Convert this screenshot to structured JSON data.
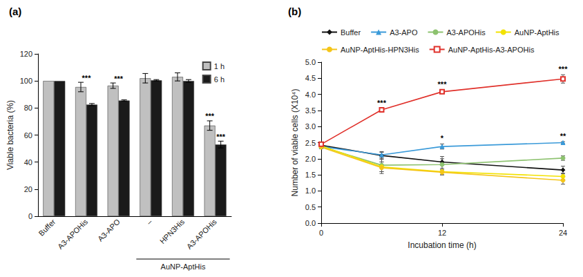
{
  "chart_data": [
    {
      "type": "bar",
      "title": "(a)",
      "y_label": "Viable bacteria (%)",
      "categories": [
        "Buffer",
        "A3-APOHis",
        "A3-APO",
        "–",
        "HPN3His",
        "A3-APOHis"
      ],
      "series": [
        {
          "name": "1 h",
          "color": "#c0c0c0",
          "values": [
            100,
            95.5,
            96.5,
            102,
            103,
            67
          ],
          "errors": [
            0,
            3.5,
            2,
            3.5,
            3,
            3.5
          ]
        },
        {
          "name": "6 h",
          "color": "#1a1a1a",
          "values": [
            100,
            82.5,
            85.5,
            100.5,
            100,
            53
          ],
          "errors": [
            0,
            0.8,
            0.5,
            0.5,
            1,
            2.5
          ]
        }
      ],
      "ylim": [
        0,
        120
      ],
      "yticks": [
        0,
        20,
        40,
        60,
        80,
        100,
        120
      ],
      "grid": false,
      "legend": "upper right",
      "annotations": [
        {
          "category_index": 1,
          "text": "***"
        },
        {
          "category_index": 2,
          "text": "***"
        },
        {
          "category_index": 5,
          "series": "1 h",
          "text": "***"
        },
        {
          "category_index": 5,
          "series": "6 h",
          "text": "***"
        }
      ],
      "group_label": {
        "text": "AuNP-AptHis",
        "from_index": 3,
        "to_index": 5
      }
    },
    {
      "type": "line",
      "title": "(b)",
      "x_label": "Incubation time (h)",
      "y_label": "Number of viable cells (X10⁴)",
      "x": [
        0,
        6,
        12,
        24
      ],
      "series": [
        {
          "name": "Buffer",
          "color": "#111111",
          "marker": "diamond",
          "values": [
            2.42,
            2.1,
            1.9,
            1.65
          ],
          "errors": [
            0.05,
            0.12,
            0.1,
            0.12
          ]
        },
        {
          "name": "A3-APO",
          "color": "#3a9ad9",
          "marker": "triangle",
          "values": [
            2.38,
            2.12,
            2.38,
            2.5
          ],
          "errors": [
            0.05,
            0.08,
            0.08,
            0.03
          ]
        },
        {
          "name": "A3-APOHis",
          "color": "#8dc26f",
          "marker": "circle",
          "values": [
            2.38,
            1.8,
            1.82,
            2.02
          ],
          "errors": [
            0.05,
            0.2,
            0.25,
            0.07
          ]
        },
        {
          "name": "AuNP-AptHis",
          "color": "#f2e200",
          "marker": "circle",
          "values": [
            2.4,
            1.75,
            1.6,
            1.45
          ],
          "errors": [
            0.05,
            0.15,
            0.1,
            0.1
          ]
        },
        {
          "name": "AuNP-AptHis-HPN3His",
          "color": "#f5c518",
          "marker": "circle",
          "values": [
            2.36,
            1.72,
            1.58,
            1.33
          ],
          "errors": [
            0.05,
            0.18,
            0.08,
            0.12
          ]
        },
        {
          "name": "AuNP-AptHis-A3-APOHis",
          "color": "#e0302a",
          "marker": "square-open",
          "values": [
            2.45,
            3.52,
            4.08,
            4.48
          ],
          "errors": [
            0.05,
            0.03,
            0.06,
            0.13
          ]
        }
      ],
      "xlim": [
        0,
        24
      ],
      "xticks": [
        0,
        12,
        24
      ],
      "ylim": [
        0,
        5
      ],
      "yticks": [
        {
          "value": 0,
          "label": "0.0"
        },
        0.5,
        {
          "value": 1,
          "label": "1.0"
        },
        1.5,
        {
          "value": 2,
          "label": "2.0"
        },
        2.5,
        {
          "value": 3,
          "label": "3.0"
        },
        3.5,
        {
          "value": 4,
          "label": "4.0"
        },
        4.5,
        {
          "value": 5,
          "label": "5.0"
        }
      ],
      "grid": false,
      "legend": "top",
      "annotations": [
        {
          "x": 6,
          "series": "AuNP-AptHis-A3-APOHis",
          "text": "***"
        },
        {
          "x": 12,
          "series": "AuNP-AptHis-A3-APOHis",
          "text": "***"
        },
        {
          "x": 24,
          "series": "AuNP-AptHis-A3-APOHis",
          "text": "***"
        },
        {
          "x": 12,
          "series": "A3-APO",
          "text": "*"
        },
        {
          "x": 24,
          "series": "A3-APO",
          "text": "**"
        }
      ]
    }
  ]
}
